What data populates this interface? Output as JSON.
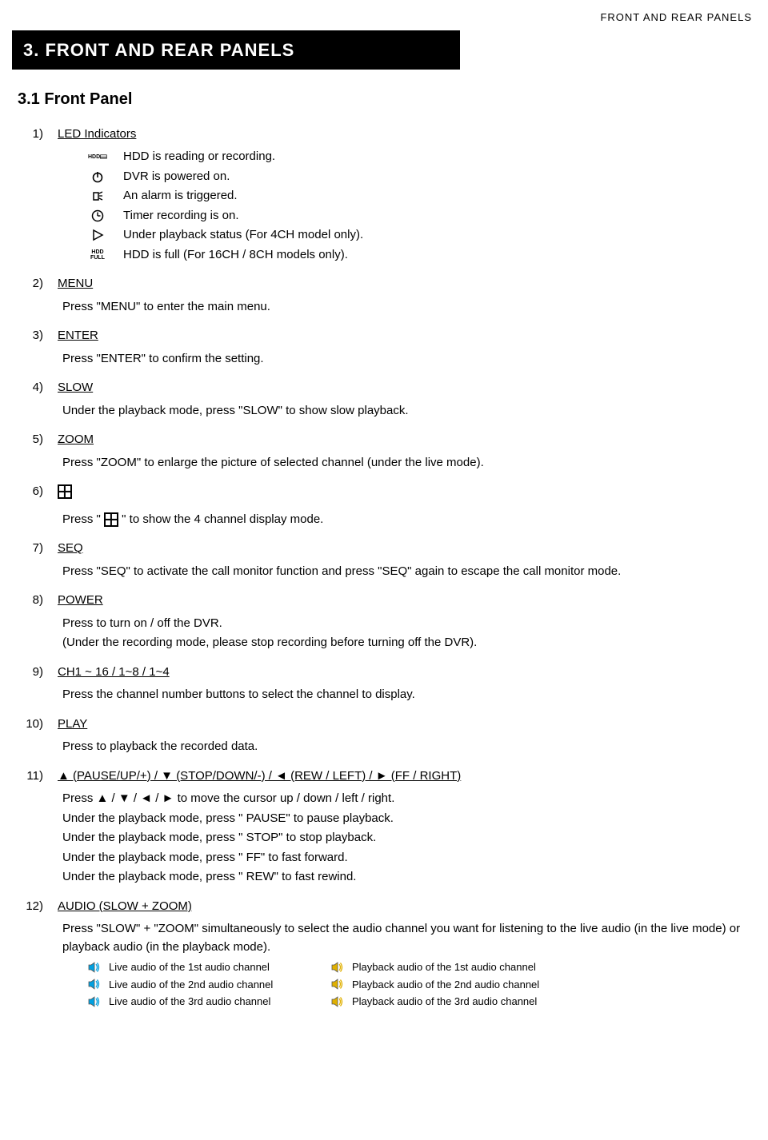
{
  "header": {
    "breadcrumb": "FRONT AND REAR PANELS"
  },
  "banner": {
    "title": "3. FRONT AND REAR PANELS"
  },
  "subsection": {
    "title": "3.1 Front Panel"
  },
  "items": [
    {
      "num": "1)",
      "heading": "LED Indicators",
      "leds": [
        {
          "icon": "hdd",
          "text": "HDD is reading or recording."
        },
        {
          "icon": "power",
          "text": "DVR is powered on."
        },
        {
          "icon": "alarm",
          "text": "An alarm is triggered."
        },
        {
          "icon": "clock",
          "text": "Timer recording is on."
        },
        {
          "icon": "play",
          "text": "Under playback status (For 4CH model only)."
        },
        {
          "icon": "hddfull",
          "text": "HDD is full (For 16CH / 8CH models only)."
        }
      ]
    },
    {
      "num": "2)",
      "heading": "MENU",
      "body": [
        "Press \"MENU\" to enter the main menu."
      ]
    },
    {
      "num": "3)",
      "heading": "ENTER",
      "body": [
        "Press \"ENTER\" to confirm the setting."
      ]
    },
    {
      "num": "4)",
      "heading": "SLOW",
      "body": [
        "Under the playback mode, press \"SLOW\" to show slow playback."
      ]
    },
    {
      "num": "5)",
      "heading": "ZOOM",
      "body": [
        "Press \"ZOOM\" to enlarge the picture of selected channel (under the live mode)."
      ]
    },
    {
      "num": "6)",
      "heading_icon": "grid",
      "body_pre": "Press \" ",
      "body_post": " \" to show the 4 channel display mode."
    },
    {
      "num": "7)",
      "heading": "SEQ",
      "body": [
        "Press \"SEQ\" to activate the call monitor function and press \"SEQ\" again to escape the call monitor mode."
      ]
    },
    {
      "num": "8)",
      "heading": "POWER",
      "body": [
        "Press to turn on / off the DVR.",
        "(Under the recording mode, please stop recording before turning off the DVR)."
      ]
    },
    {
      "num": "9)",
      "heading": "CH1 ~ 16 / 1~8 / 1~4",
      "body": [
        "Press the channel number buttons to select the channel to display."
      ]
    },
    {
      "num": "10)",
      "heading": "PLAY",
      "body": [
        "Press to playback the recorded data."
      ]
    },
    {
      "num": "11)",
      "heading": "▲ (PAUSE/UP/+) / ▼ (STOP/DOWN/-) / ◄ (REW / LEFT) / ► (FF / RIGHT)",
      "body": [
        "Press ▲ / ▼ / ◄ / ► to move the cursor up / down / left / right.",
        "Under the playback mode, press \" PAUSE\" to pause playback.",
        "Under the playback mode, press \" STOP\" to stop playback.",
        "Under the playback mode, press \" FF\" to fast forward.",
        "Under the playback mode, press \" REW\" to fast rewind."
      ]
    },
    {
      "num": "12)",
      "heading": "AUDIO (SLOW + ZOOM)",
      "body": [
        "Press \"SLOW\" + \"ZOOM\" simultaneously to select the audio channel you want for listening to the live audio (in the live mode) or playback audio (in the playback mode)."
      ],
      "audio": [
        {
          "live_color": "#00a0e0",
          "live": "Live audio of the 1st audio channel",
          "pb_color": "#e0b000",
          "pb": "Playback audio of the 1st audio channel"
        },
        {
          "live_color": "#00a0e0",
          "live": "Live audio of the 2nd audio channel",
          "pb_color": "#e0b000",
          "pb": "Playback audio of the 2nd audio channel"
        },
        {
          "live_color": "#00a0e0",
          "live": "Live audio of the 3rd audio channel",
          "pb_color": "#e0b000",
          "pb": "Playback audio of the 3rd audio channel"
        }
      ]
    }
  ]
}
